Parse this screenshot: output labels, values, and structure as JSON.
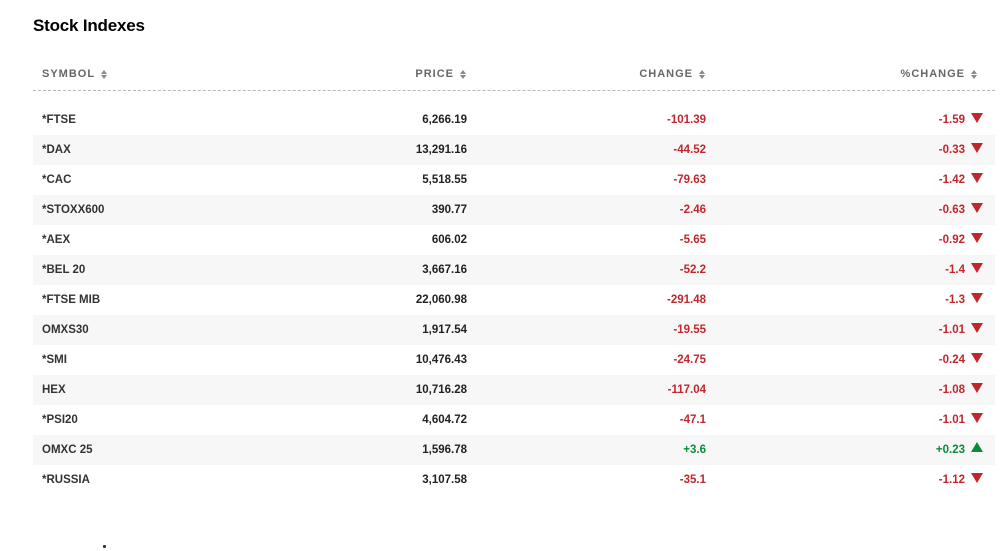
{
  "title": "Stock Indexes",
  "columns": {
    "symbol": "SYMBOL",
    "price": "PRICE",
    "change": "CHANGE",
    "pct_change": "%CHANGE"
  },
  "rows": [
    {
      "symbol": "*FTSE",
      "price": "6,266.19",
      "change": "-101.39",
      "pct": "-1.59",
      "direction": "down"
    },
    {
      "symbol": "*DAX",
      "price": "13,291.16",
      "change": "-44.52",
      "pct": "-0.33",
      "direction": "down"
    },
    {
      "symbol": "*CAC",
      "price": "5,518.55",
      "change": "-79.63",
      "pct": "-1.42",
      "direction": "down"
    },
    {
      "symbol": "*STOXX600",
      "price": "390.77",
      "change": "-2.46",
      "pct": "-0.63",
      "direction": "down"
    },
    {
      "symbol": "*AEX",
      "price": "606.02",
      "change": "-5.65",
      "pct": "-0.92",
      "direction": "down"
    },
    {
      "symbol": "*BEL 20",
      "price": "3,667.16",
      "change": "-52.2",
      "pct": "-1.4",
      "direction": "down"
    },
    {
      "symbol": "*FTSE MIB",
      "price": "22,060.98",
      "change": "-291.48",
      "pct": "-1.3",
      "direction": "down"
    },
    {
      "symbol": "OMXS30",
      "price": "1,917.54",
      "change": "-19.55",
      "pct": "-1.01",
      "direction": "down"
    },
    {
      "symbol": "*SMI",
      "price": "10,476.43",
      "change": "-24.75",
      "pct": "-0.24",
      "direction": "down"
    },
    {
      "symbol": "HEX",
      "price": "10,716.28",
      "change": "-117.04",
      "pct": "-1.08",
      "direction": "down"
    },
    {
      "symbol": "*PSI20",
      "price": "4,604.72",
      "change": "-47.1",
      "pct": "-1.01",
      "direction": "down"
    },
    {
      "symbol": "OMXC 25",
      "price": "1,596.78",
      "change": "+3.6",
      "pct": "+0.23",
      "direction": "up"
    },
    {
      "symbol": "*RUSSIA",
      "price": "3,107.58",
      "change": "-35.1",
      "pct": "-1.12",
      "direction": "down"
    }
  ],
  "colors": {
    "negative": "#c0272d",
    "positive": "#0a8a3a"
  },
  "icons": {
    "sort": "sort-updown-icon",
    "down": "triangle-down-icon",
    "up": "triangle-up-icon"
  }
}
